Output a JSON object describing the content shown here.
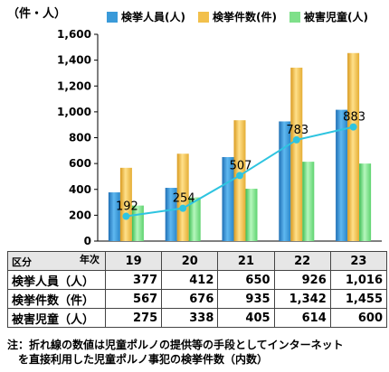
{
  "unit_label": "（件・人）",
  "table": {
    "corner_top": "年次",
    "corner_bottom": "区分"
  },
  "note": {
    "line1": "注：折れ線の数値は児童ポルノの提供等の手段としてインターネット",
    "line2": "　を直接利用した児童ポルノ事犯の検挙件数（内数）"
  },
  "colors": {
    "arrested_persons": "#3a9ad9",
    "arrested_cases": "#f2c04c",
    "child_victims": "#7fe08a",
    "line": "#2ec4e0"
  },
  "chart_data": {
    "type": "bar",
    "categories": [
      "19",
      "20",
      "21",
      "22",
      "23"
    ],
    "series": [
      {
        "name": "検挙人員(人)",
        "values": [
          377,
          412,
          650,
          926,
          1016
        ]
      },
      {
        "name": "検挙件数(件)",
        "values": [
          567,
          676,
          935,
          1342,
          1455
        ]
      },
      {
        "name": "被害児童(人)",
        "values": [
          275,
          338,
          405,
          614,
          600
        ]
      }
    ],
    "line_series": {
      "values": [
        192,
        254,
        507,
        783,
        883
      ]
    },
    "ylim": [
      0,
      1600
    ],
    "yticks": [
      0,
      200,
      400,
      600,
      800,
      1000,
      1200,
      1400,
      1600
    ],
    "ytick_labels": [
      "0",
      "200",
      "400",
      "600",
      "800",
      "1,000",
      "1,200",
      "1,400",
      "1,600"
    ],
    "table_rows": [
      {
        "label": "検挙人員（人）",
        "values": [
          "377",
          "412",
          "650",
          "926",
          "1,016"
        ]
      },
      {
        "label": "検挙件数（件）",
        "values": [
          "567",
          "676",
          "935",
          "1,342",
          "1,455"
        ]
      },
      {
        "label": "被害児童（人）",
        "values": [
          "275",
          "338",
          "405",
          "614",
          "600"
        ]
      }
    ],
    "grid": false,
    "legend_position": "top"
  }
}
